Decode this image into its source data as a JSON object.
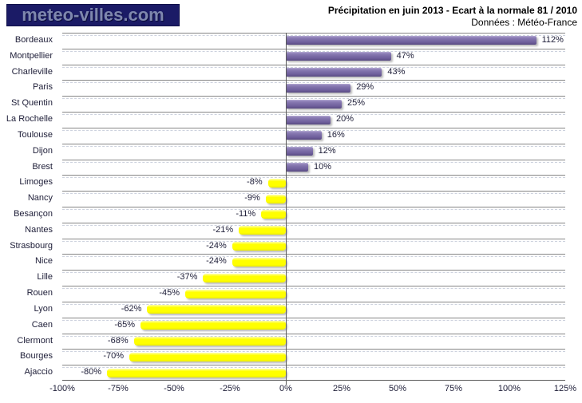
{
  "header": {
    "logo_text": "meteo-villes.com",
    "title": "Précipitation en juin 2013 - Ecart à la normale 81 / 2010",
    "subtitle": "Données : Météo-France"
  },
  "chart_data": {
    "type": "bar",
    "orientation": "horizontal",
    "title": "Précipitation en juin 2013 - Ecart à la normale 81 / 2010",
    "source": "Données : Météo-France",
    "categories": [
      "Bordeaux",
      "Montpellier",
      "Charleville",
      "Paris",
      "St Quentin",
      "La Rochelle",
      "Toulouse",
      "Dijon",
      "Brest",
      "Limoges",
      "Nancy",
      "Besançon",
      "Nantes",
      "Strasbourg",
      "Nice",
      "Lille",
      "Rouen",
      "Lyon",
      "Caen",
      "Clermont",
      "Bourges",
      "Ajaccio"
    ],
    "values": [
      112,
      47,
      43,
      29,
      25,
      20,
      16,
      12,
      10,
      -8,
      -9,
      -11,
      -21,
      -24,
      -24,
      -37,
      -45,
      -62,
      -65,
      -68,
      -70,
      -80
    ],
    "value_labels": [
      "112%",
      "47%",
      "43%",
      "29%",
      "25%",
      "20%",
      "16%",
      "12%",
      "10%",
      "-8%",
      "-9%",
      "-11%",
      "-21%",
      "-24%",
      "-24%",
      "-37%",
      "-45%",
      "-62%",
      "-65%",
      "-68%",
      "-70%",
      "-80%"
    ],
    "xlim": [
      -100,
      125
    ],
    "x_tick_values": [
      -100,
      -75,
      -50,
      -25,
      0,
      25,
      50,
      75,
      100,
      125
    ],
    "x_tick_labels": [
      "-100%",
      "-75%",
      "-50%",
      "-25%",
      "0%",
      "25%",
      "50%",
      "75%",
      "100%",
      "125%"
    ],
    "grid": "horizontal-category-lines",
    "legend": "none",
    "colors": {
      "positive_bar": "#7b6ca6",
      "negative_bar": "#ffff00"
    }
  }
}
